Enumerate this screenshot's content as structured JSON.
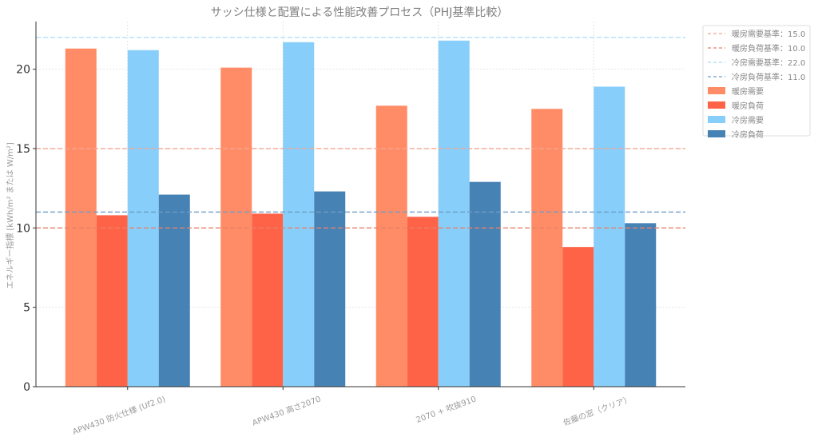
{
  "chart_data": {
    "type": "bar",
    "title": "サッシ仕様と配置による性能改善プロセス（PHJ基準比較）",
    "xlabel": "",
    "ylabel": "エネルギー指標 [kWh/m² または W/m²]",
    "ylim": [
      0,
      23
    ],
    "yticks": [
      0,
      5,
      10,
      15,
      20
    ],
    "grid": true,
    "legend_position": "outside-top-right",
    "categories": [
      "APW430 防火仕様 (Uf2.0)",
      "APW430 高さ2070",
      "2070 + 吹抜910",
      "佐藤の窓（クリア）"
    ],
    "series": [
      {
        "name": "暖房需要",
        "color": "#FF8C66",
        "values": [
          21.3,
          20.1,
          17.7,
          17.5
        ]
      },
      {
        "name": "暖房負荷",
        "color": "#FF6347",
        "values": [
          10.8,
          10.9,
          10.7,
          8.8
        ]
      },
      {
        "name": "冷房需要",
        "color": "#87CEFA",
        "values": [
          21.2,
          21.7,
          21.8,
          18.9
        ]
      },
      {
        "name": "冷房負荷",
        "color": "#4682B4",
        "values": [
          12.1,
          12.3,
          12.9,
          10.3
        ]
      }
    ],
    "reference_lines": [
      {
        "name": "暖房需要基準：15.0",
        "value": 15.0,
        "color": "#F4A593"
      },
      {
        "name": "暖房負荷基準：10.0",
        "value": 10.0,
        "color": "#E8806A"
      },
      {
        "name": "冷房需要基準：22.0",
        "value": 22.0,
        "color": "#A8DCF8"
      },
      {
        "name": "冷房負荷基準：11.0",
        "value": 11.0,
        "color": "#6F9CC8"
      }
    ]
  }
}
